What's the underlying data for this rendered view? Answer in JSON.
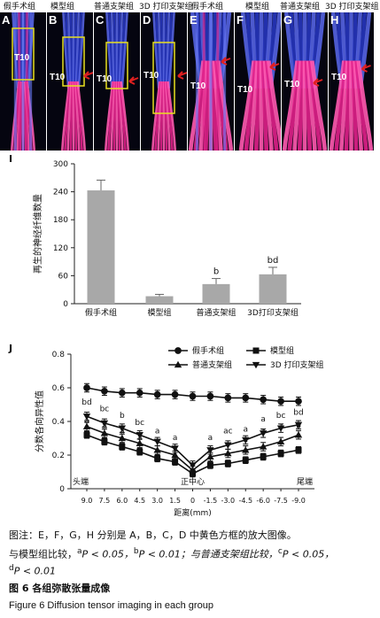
{
  "panel_headers": [
    "假手术组",
    "模型组",
    "普通支架组",
    "3D 打印支架组",
    "假手术组",
    "模型组",
    "普通支架组",
    "3D 打印支架组"
  ],
  "panel_letters": [
    "A",
    "B",
    "C",
    "D",
    "E",
    "F",
    "G",
    "H"
  ],
  "t10_label": "T10",
  "chart_data": [
    {
      "type": "bar",
      "panel_label": "I",
      "ylabel": "再生的神经纤维数量",
      "ylim": [
        0,
        300
      ],
      "yticks": [
        0,
        60,
        120,
        180,
        240,
        300
      ],
      "categories": [
        "假手术组",
        "模型组",
        "普通支架组",
        "3D打印支架组"
      ],
      "values": [
        243,
        16,
        42,
        63
      ],
      "errors": [
        22,
        4,
        12,
        15
      ],
      "annotations": [
        "",
        "",
        "b",
        "bd"
      ],
      "bar_color": "#a8a8a8"
    },
    {
      "type": "line",
      "panel_label": "J",
      "ylabel": "分数各向异性值",
      "xlabel": "距离(mm)",
      "ylim": [
        0,
        0.8
      ],
      "yticks": [
        "0",
        "0.2",
        "0.4",
        "0.6",
        "0.8"
      ],
      "x": [
        "9.0",
        "7.5",
        "6.0",
        "4.5",
        "3.0",
        "1.5",
        "0",
        "-1.5",
        "-3.0",
        "-4.5",
        "-6.0",
        "-7.5",
        "-9.0"
      ],
      "x_left_note": "头端",
      "x_center_note": "正中心",
      "x_right_note": "尾端",
      "legend_position": "top-right",
      "series": [
        {
          "name": "假手术组",
          "marker": "circle",
          "values": [
            0.6,
            0.58,
            0.57,
            0.57,
            0.56,
            0.56,
            0.55,
            0.55,
            0.54,
            0.54,
            0.53,
            0.52,
            0.52
          ],
          "error": 0.025
        },
        {
          "name": "模型组",
          "marker": "square",
          "values": [
            0.32,
            0.28,
            0.25,
            0.22,
            0.18,
            0.16,
            0.09,
            0.14,
            0.15,
            0.17,
            0.19,
            0.21,
            0.23
          ],
          "error": 0.02
        },
        {
          "name": "普通支架组",
          "marker": "triangle-up",
          "values": [
            0.37,
            0.33,
            0.3,
            0.27,
            0.23,
            0.2,
            0.11,
            0.19,
            0.21,
            0.23,
            0.25,
            0.28,
            0.32
          ],
          "error": 0.025
        },
        {
          "name": "3D 打印支架组",
          "marker": "triangle-down",
          "values": [
            0.43,
            0.39,
            0.36,
            0.32,
            0.28,
            0.24,
            0.14,
            0.23,
            0.26,
            0.29,
            0.33,
            0.36,
            0.38
          ],
          "error": 0.025
        }
      ],
      "point_annotations": [
        {
          "x_index": 0,
          "text": "bd",
          "level": 0.5
        },
        {
          "x_index": 0,
          "text": "a",
          "level": 0.39
        },
        {
          "x_index": 1,
          "text": "bc",
          "level": 0.46
        },
        {
          "x_index": 1,
          "text": "a",
          "level": 0.36
        },
        {
          "x_index": 2,
          "text": "b",
          "level": 0.42
        },
        {
          "x_index": 2,
          "text": "a",
          "level": 0.33
        },
        {
          "x_index": 3,
          "text": "bc",
          "level": 0.38
        },
        {
          "x_index": 3,
          "text": "a",
          "level": 0.29
        },
        {
          "x_index": 4,
          "text": "a",
          "level": 0.33
        },
        {
          "x_index": 5,
          "text": "a",
          "level": 0.29
        },
        {
          "x_index": 7,
          "text": "a",
          "level": 0.29
        },
        {
          "x_index": 8,
          "text": "ac",
          "level": 0.33
        },
        {
          "x_index": 9,
          "text": "a",
          "level": 0.34
        },
        {
          "x_index": 9,
          "text": "a",
          "level": 0.28
        },
        {
          "x_index": 10,
          "text": "a",
          "level": 0.4
        },
        {
          "x_index": 10,
          "text": "a",
          "level": 0.33
        },
        {
          "x_index": 11,
          "text": "bc",
          "level": 0.42
        },
        {
          "x_index": 11,
          "text": "a",
          "level": 0.36
        },
        {
          "x_index": 12,
          "text": "bd",
          "level": 0.44
        },
        {
          "x_index": 12,
          "text": "b",
          "level": 0.36
        }
      ]
    }
  ],
  "caption": {
    "note_1": "图注：E，F，G，H 分别是 A，B，C，D 中黄色方框的放大图像。",
    "note_2a": "与模型组比较，",
    "note_2b": "P < 0.05，",
    "note_2c": "P < 0.01；与普通支架组比较，",
    "note_2d": "P < 0.05，",
    "sup_a": "a",
    "sup_b": "b",
    "sup_c": "c",
    "sup_d": "d",
    "note_3": "P < 0.01",
    "figure_title_cn": "图 6   各组弥散张量成像",
    "figure_title_en": "Figure 6   Diffusion tensor imaging in each group"
  },
  "colors": {
    "fiber_blue": "#2838c8",
    "fiber_magenta": "#e0208a",
    "box_yellow": "#e8e020",
    "arrow_red": "#e02020"
  }
}
